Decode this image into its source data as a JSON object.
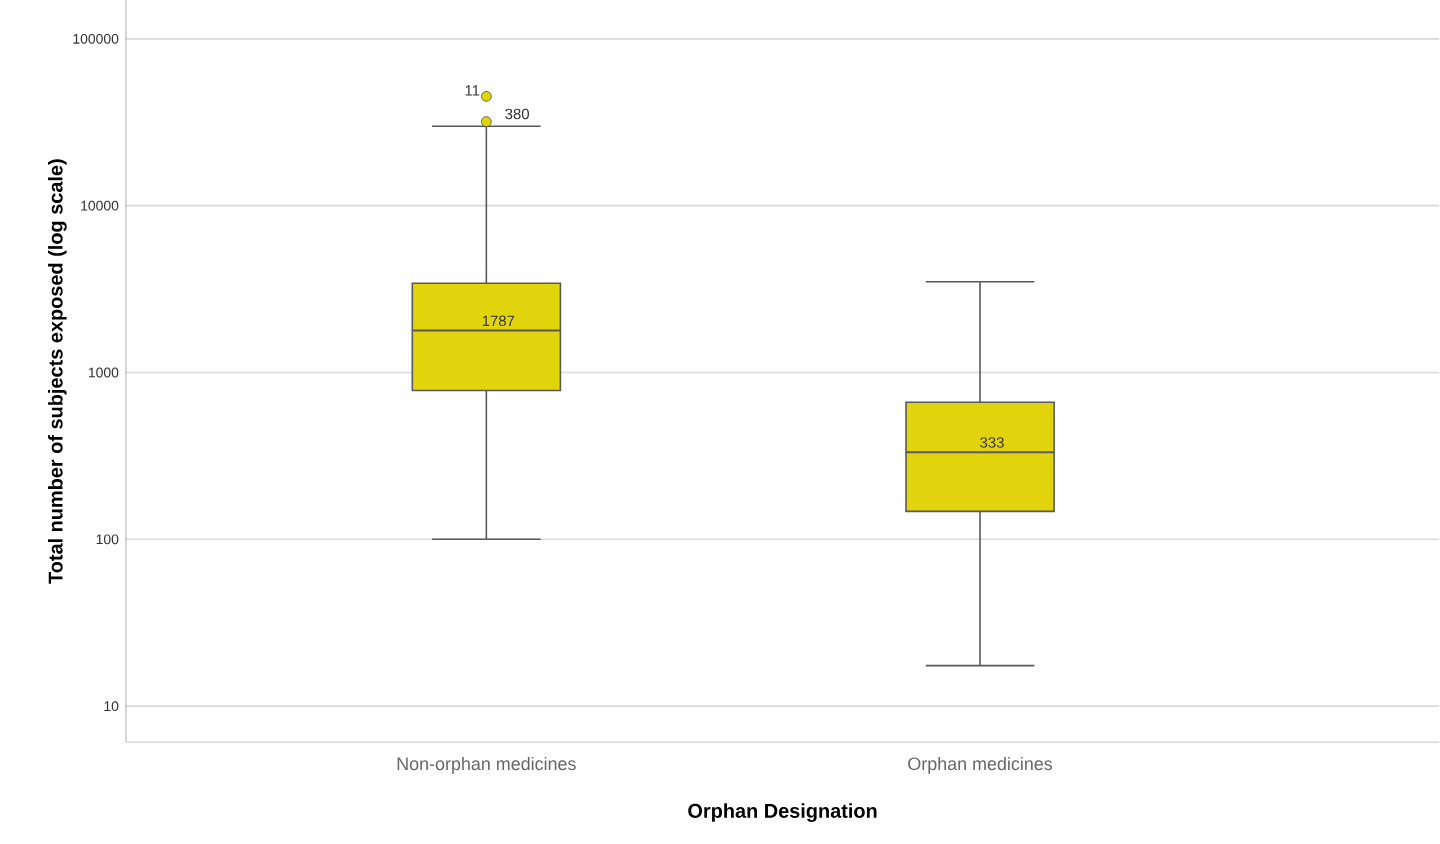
{
  "chart_data": {
    "type": "box",
    "xlabel": "Orphan Designation",
    "ylabel": "Total number of subjects exposed (log scale)",
    "categories": [
      "Non-orphan medicines",
      "Orphan medicines"
    ],
    "boxes": [
      {
        "low": 100,
        "q1": 780,
        "median": 1787,
        "q3": 3430,
        "high": 29900,
        "outliers": [
          31900,
          45200
        ]
      },
      {
        "low": 17.5,
        "q1": 147,
        "median": 333,
        "q3": 663,
        "high": 3500
      }
    ],
    "color": "#e2d40c",
    "log": "y",
    "ylim": [
      6.1,
      170000
    ],
    "yticks": [
      10,
      100,
      1000,
      10000,
      100000
    ],
    "grid": "y",
    "marker": "circle",
    "annotations": [
      {
        "text": "1787",
        "x": "Non-orphan medicines",
        "y": 1787
      },
      {
        "text": "333",
        "x": "Orphan medicines",
        "y": 333
      },
      "11",
      "380"
    ]
  }
}
